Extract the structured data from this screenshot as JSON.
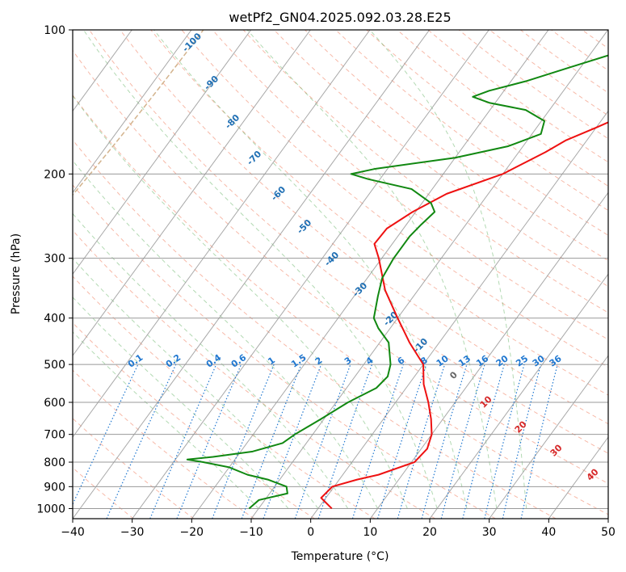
{
  "chart_data": {
    "type": "line",
    "title": "wetPf2_GN04.2025.092.03.28.E25",
    "xlabel": "Temperature (°C)",
    "ylabel": "Pressure (hPa)",
    "xlim": [
      -40,
      50
    ],
    "ylim": [
      1050,
      100
    ],
    "y_scale": "log",
    "grid": true,
    "x_ticks": [
      -40,
      -30,
      -20,
      -10,
      0,
      10,
      20,
      30,
      40,
      50
    ],
    "x_tick_labels": [
      "−40",
      "−30",
      "−20",
      "−10",
      "0",
      "10",
      "20",
      "30",
      "40",
      "50"
    ],
    "y_ticks": [
      1000,
      900,
      800,
      700,
      600,
      500,
      400,
      300,
      200,
      100
    ],
    "y_tick_labels": [
      "1000",
      "900",
      "800",
      "700",
      "600",
      "500",
      "400",
      "300",
      "200",
      "100"
    ],
    "series": [
      {
        "color": "#ee1111",
        "points": [
          [
            1000,
            2.3
          ],
          [
            950,
            -0.8
          ],
          [
            900,
            -0.3
          ],
          [
            870,
            3.0
          ],
          [
            850,
            6.0
          ],
          [
            800,
            10.5
          ],
          [
            750,
            11.0
          ],
          [
            700,
            10.0
          ],
          [
            650,
            8.0
          ],
          [
            600,
            5.5
          ],
          [
            550,
            2.5
          ],
          [
            500,
            0.0
          ],
          [
            450,
            -5.0
          ],
          [
            400,
            -10.0
          ],
          [
            350,
            -15.5
          ],
          [
            300,
            -20.5
          ],
          [
            280,
            -23.0
          ],
          [
            260,
            -22.8
          ],
          [
            240,
            -20.5
          ],
          [
            220,
            -17.0
          ],
          [
            200,
            -10.0
          ],
          [
            180,
            -5.5
          ],
          [
            170,
            -3.5
          ],
          [
            160,
            0.0
          ],
          [
            150,
            3.5
          ],
          [
            140,
            9.0
          ],
          [
            130,
            12.5
          ],
          [
            120,
            13.5
          ],
          [
            110,
            15.5
          ],
          [
            100,
            21.0
          ]
        ]
      },
      {
        "color": "#118811",
        "points": [
          [
            1000,
            -11.6
          ],
          [
            960,
            -11.0
          ],
          [
            930,
            -7.0
          ],
          [
            900,
            -8.0
          ],
          [
            870,
            -12.0
          ],
          [
            850,
            -16.0
          ],
          [
            820,
            -20.0
          ],
          [
            800,
            -25.0
          ],
          [
            790,
            -28.0
          ],
          [
            780,
            -24.0
          ],
          [
            760,
            -18.0
          ],
          [
            730,
            -14.0
          ],
          [
            700,
            -13.0
          ],
          [
            650,
            -10.5
          ],
          [
            600,
            -8.0
          ],
          [
            560,
            -5.0
          ],
          [
            530,
            -4.5
          ],
          [
            500,
            -5.5
          ],
          [
            450,
            -8.5
          ],
          [
            420,
            -12.0
          ],
          [
            400,
            -14.0
          ],
          [
            360,
            -16.0
          ],
          [
            330,
            -17.5
          ],
          [
            300,
            -18.0
          ],
          [
            270,
            -18.0
          ],
          [
            255,
            -17.5
          ],
          [
            240,
            -16.8
          ],
          [
            230,
            -18.5
          ],
          [
            215,
            -23.5
          ],
          [
            205,
            -32.0
          ],
          [
            200,
            -35.5
          ],
          [
            195,
            -32.0
          ],
          [
            185,
            -20.0
          ],
          [
            175,
            -12.5
          ],
          [
            165,
            -8.5
          ],
          [
            155,
            -9.5
          ],
          [
            147,
            -14.0
          ],
          [
            142,
            -21.0
          ],
          [
            138,
            -24.5
          ],
          [
            134,
            -22.5
          ],
          [
            128,
            -17.5
          ],
          [
            120,
            -12.0
          ],
          [
            112,
            -6.0
          ],
          [
            100,
            1.0
          ]
        ]
      }
    ],
    "isotherm_labels": [
      "-100",
      "-90",
      "-80",
      "-70",
      "-60",
      "-50",
      "-40",
      "-30",
      "-20",
      "-10",
      "0",
      "10",
      "20",
      "30",
      "40"
    ],
    "mixing_ratio_labels": [
      "0.1",
      "0.2",
      "0.4",
      "0.6",
      "1",
      "1.5",
      "2",
      "3",
      "4",
      "6",
      "8",
      "10",
      "13",
      "16",
      "20",
      "25",
      "30",
      "36"
    ],
    "colors": {
      "isotherm": "#999999",
      "isobar": "#999999",
      "dry_adiabat": "#f08060",
      "moist_adiabat": "#55aa55",
      "mixing_ratio": "#1f77d0",
      "cold_label": "#1f6fb4",
      "warm_label": "#d62728",
      "zero_label": "#666666",
      "brown_curve": "#c8a070"
    }
  }
}
